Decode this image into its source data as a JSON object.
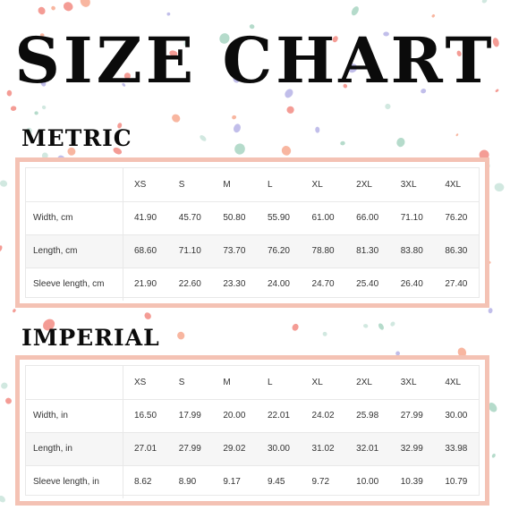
{
  "title": "SIZE CHART",
  "colors": {
    "frame": "#f4c2b4",
    "text": "#0b0b0b",
    "confetti": [
      "#f28b82",
      "#a8d5c2",
      "#b6b3e6",
      "#f7a98f",
      "#c9e4da"
    ]
  },
  "metric": {
    "heading": "METRIC",
    "columns": [
      "XS",
      "S",
      "M",
      "L",
      "XL",
      "2XL",
      "3XL",
      "4XL"
    ],
    "rows": [
      {
        "label": "Width, cm",
        "values": [
          "41.90",
          "45.70",
          "50.80",
          "55.90",
          "61.00",
          "66.00",
          "71.10",
          "76.20"
        ]
      },
      {
        "label": "Length, cm",
        "values": [
          "68.60",
          "71.10",
          "73.70",
          "76.20",
          "78.80",
          "81.30",
          "83.80",
          "86.30"
        ]
      },
      {
        "label": "Sleeve length, cm",
        "values": [
          "21.90",
          "22.60",
          "23.30",
          "24.00",
          "24.70",
          "25.40",
          "26.40",
          "27.40"
        ]
      }
    ]
  },
  "imperial": {
    "heading": "IMPERIAL",
    "columns": [
      "XS",
      "S",
      "M",
      "L",
      "XL",
      "2XL",
      "3XL",
      "4XL"
    ],
    "rows": [
      {
        "label": "Width, in",
        "values": [
          "16.50",
          "17.99",
          "20.00",
          "22.01",
          "24.02",
          "25.98",
          "27.99",
          "30.00"
        ]
      },
      {
        "label": "Length, in",
        "values": [
          "27.01",
          "27.99",
          "29.02",
          "30.00",
          "31.02",
          "32.01",
          "32.99",
          "33.98"
        ]
      },
      {
        "label": "Sleeve length, in",
        "values": [
          "8.62",
          "8.90",
          "9.17",
          "9.45",
          "9.72",
          "10.00",
          "10.39",
          "10.79"
        ]
      }
    ]
  }
}
